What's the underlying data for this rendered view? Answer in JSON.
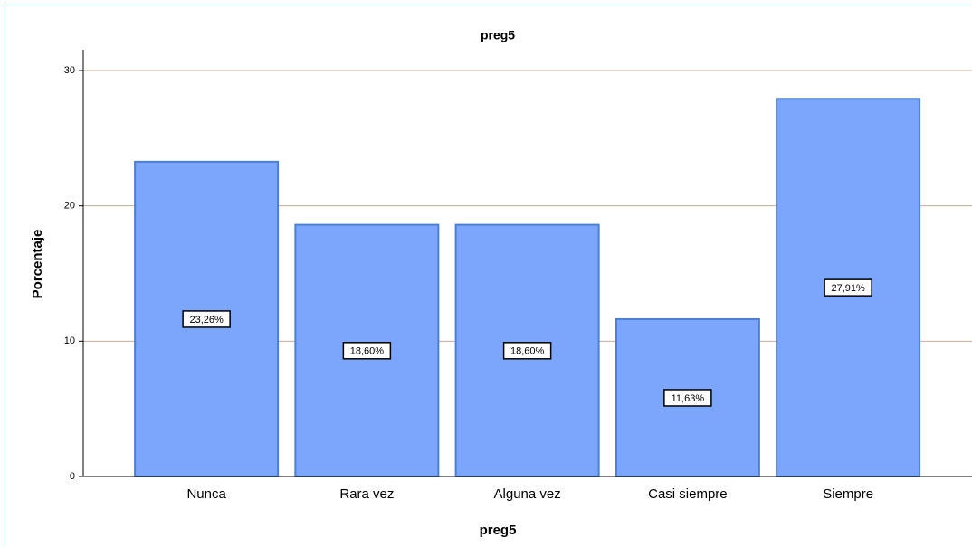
{
  "chart_data": {
    "type": "bar",
    "title": "preg5",
    "x_label": "preg5",
    "y_label": "Porcentaje",
    "categories": [
      "Nunca",
      "Rara vez",
      "Alguna vez",
      "Casi siempre",
      "Siempre"
    ],
    "values": [
      23.26,
      18.6,
      18.6,
      11.63,
      27.91
    ],
    "value_labels": [
      "23,26%",
      "18,60%",
      "18,60%",
      "11,63%",
      "27,91%"
    ],
    "color": "#7ba6fc",
    "ylim": [
      0,
      30
    ],
    "yticks": [
      0,
      10,
      20,
      30
    ],
    "grid": true
  }
}
